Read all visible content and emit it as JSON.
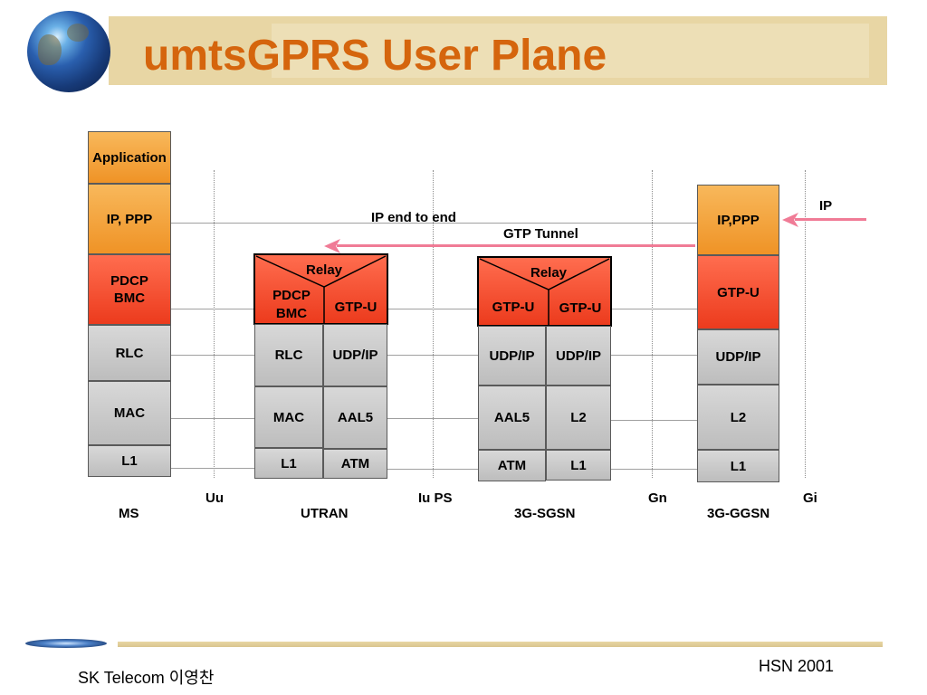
{
  "slide": {
    "title": "umtsGPRS User Plane",
    "footer_left": "SK Telecom 이영찬",
    "footer_right": "HSN 2001"
  },
  "labels": {
    "ip_end_to_end": "IP end to end",
    "gtp_tunnel": "GTP Tunnel",
    "ip_input": "IP"
  },
  "interfaces": {
    "uu": "Uu",
    "iu_ps": "Iu PS",
    "gn": "Gn",
    "gi": "Gi"
  },
  "nodes": {
    "ms": {
      "name": "MS",
      "layers": [
        "Application",
        "IP, PPP",
        "PDCP\nBMC",
        "RLC",
        "MAC",
        "L1"
      ]
    },
    "utran": {
      "name": "UTRAN",
      "relay": "Relay",
      "left": [
        "PDCP\nBMC",
        "RLC",
        "MAC",
        "L1"
      ],
      "right": [
        "GTP-U",
        "UDP/IP",
        "AAL5",
        "ATM"
      ]
    },
    "sgsn": {
      "name": "3G-SGSN",
      "relay": "Relay",
      "left": [
        "GTP-U",
        "UDP/IP",
        "AAL5",
        "ATM"
      ],
      "right": [
        "GTP-U",
        "UDP/IP",
        "L2",
        "L1"
      ]
    },
    "ggsn": {
      "name": "3G-GGSN",
      "layers": [
        "IP,PPP",
        "GTP-U",
        "UDP/IP",
        "L2",
        "L1"
      ]
    }
  },
  "colors": {
    "title": "#d5650d",
    "upper_layer": "#f4a43e",
    "convergence_layer": "#f04e2e",
    "transport_layer": "#c8c8c8",
    "arrow": "#f07b96"
  }
}
